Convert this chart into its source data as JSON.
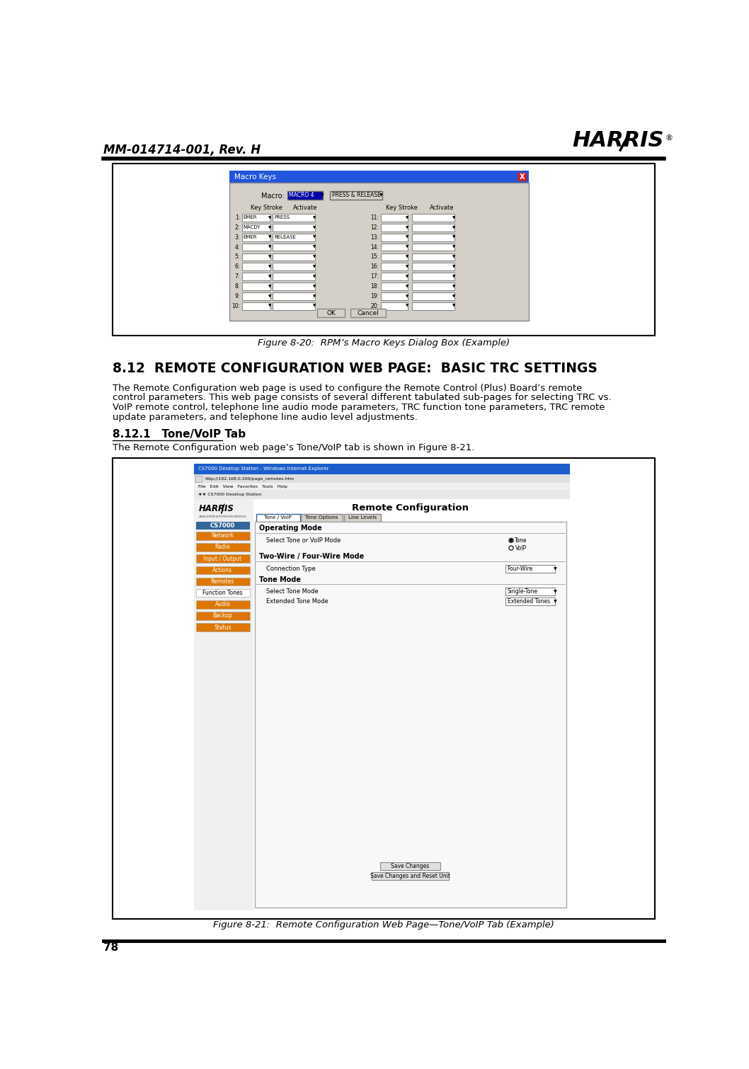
{
  "page_title_left": "MM-014714-001, Rev. H",
  "page_number": "78",
  "fig1_caption": "Figure 8-20:  RPM’s Macro Keys Dialog Box (Example)",
  "section_title": "8.12  REMOTE CONFIGURATION WEB PAGE:  BASIC TRC SETTINGS",
  "body_lines": [
    "The Remote Configuration web page is used to configure the Remote Control (Plus) Board’s remote",
    "control parameters. This web page consists of several different tabulated sub-pages for selecting TRC vs.",
    "VoIP remote control, telephone line audio mode parameters, TRC function tone parameters, TRC remote",
    "update parameters, and telephone line audio level adjustments."
  ],
  "subsection_title": "8.12.1   Tone/VoIP Tab",
  "subsection_body": "The Remote Configuration web page’s Tone/VoIP tab is shown in Figure 8-21.",
  "fig2_caption": "Figure 8-21:  Remote Configuration Web Page—Tone/VoIP Tab (Example)",
  "bg_color": "#ffffff"
}
